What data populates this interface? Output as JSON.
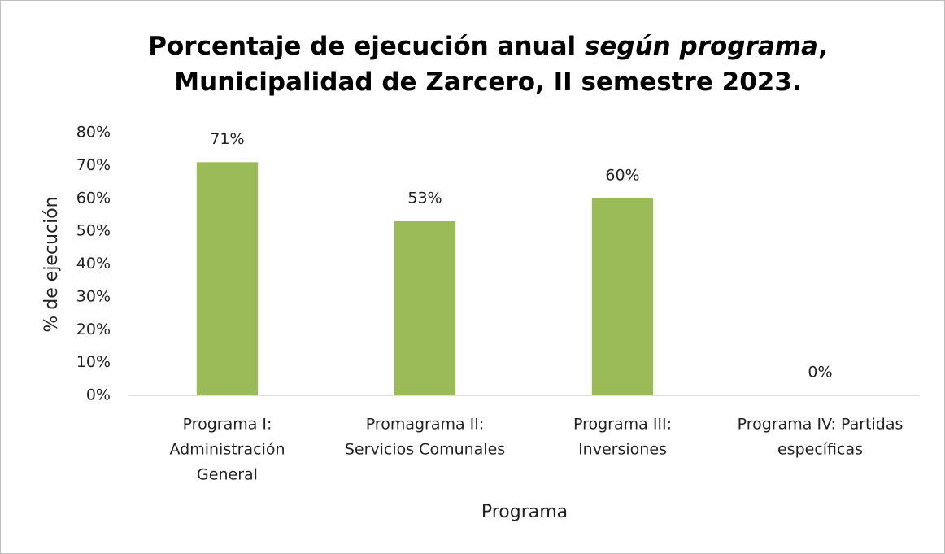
{
  "chart_data": {
    "type": "bar",
    "title_lines": [
      [
        "Porcentaje de ejecución anual ",
        "según programa",
        ","
      ],
      [
        "Municipalidad de Zarcero, II semestre 2023."
      ]
    ],
    "categories": [
      [
        "Programa I:",
        "Administración",
        "General"
      ],
      [
        "Promagrama II:",
        "Servicios Comunales"
      ],
      [
        "Programa III:",
        "Inversiones"
      ],
      [
        "Programa IV: Partidas",
        "específicas"
      ]
    ],
    "values": [
      71,
      53,
      60,
      0
    ],
    "value_labels": [
      "71%",
      "53%",
      "60%",
      "0%"
    ],
    "color": "#9bbb59",
    "ylim": [
      0,
      80
    ],
    "yticks": [
      {
        "value": 0,
        "label": "0%"
      },
      {
        "value": 10,
        "label": "10%"
      },
      {
        "value": 20,
        "label": "20%"
      },
      {
        "value": 30,
        "label": "30%"
      },
      {
        "value": 40,
        "label": "40%"
      },
      {
        "value": 50,
        "label": "50%"
      },
      {
        "value": 60,
        "label": "60%"
      },
      {
        "value": 70,
        "label": "70%"
      },
      {
        "value": 80,
        "label": "80%"
      }
    ],
    "xlabel": "Programa",
    "ylabel": "% de ejecución",
    "grid": false
  }
}
